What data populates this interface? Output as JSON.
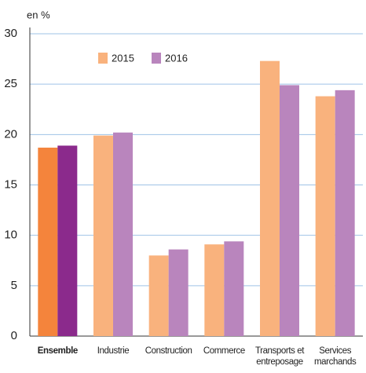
{
  "chart_data": {
    "type": "bar",
    "y_label": "en %",
    "categories": [
      "Ensemble",
      "Industrie",
      "Construction",
      "Commerce",
      "Transports et entreposage",
      "Services marchands"
    ],
    "series": [
      {
        "name": "2015",
        "color": "#f9b27d",
        "highlight_color": "#f4843c",
        "values": [
          18.7,
          19.9,
          8.0,
          9.1,
          27.3,
          23.8
        ]
      },
      {
        "name": "2016",
        "color": "#b985bd",
        "highlight_color": "#8b2a8c",
        "values": [
          18.9,
          20.2,
          8.6,
          9.4,
          24.9,
          24.4
        ]
      }
    ],
    "highlight_index": 0,
    "ylim": [
      0,
      30
    ],
    "yticks": [
      0,
      5,
      10,
      15,
      20,
      25,
      30
    ],
    "grid": true
  }
}
